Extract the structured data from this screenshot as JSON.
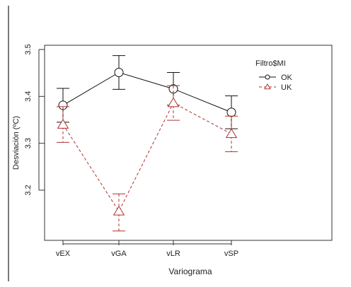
{
  "chart_data": {
    "type": "line",
    "title": "",
    "xlabel": "Variograma",
    "ylabel": "Desviación (ºC)",
    "categories": [
      "vEX",
      "vGA",
      "vLR",
      "vSP"
    ],
    "ylim": [
      3.1,
      3.5
    ],
    "yticks": [
      3.2,
      3.3,
      3.4,
      3.5
    ],
    "grid": false,
    "legend": {
      "title": "Filtro$MI",
      "placement": "top-right",
      "entries": [
        "OK",
        "UK"
      ]
    },
    "series": [
      {
        "name": "OK",
        "color": "#111111",
        "line_style": "solid",
        "marker": "circle",
        "values": [
          3.381,
          3.451,
          3.416,
          3.366
        ],
        "error_low": [
          3.345,
          3.415,
          3.381,
          3.331
        ],
        "error_high": [
          3.417,
          3.487,
          3.451,
          3.401
        ]
      },
      {
        "name": "UK",
        "color": "#b0302e",
        "line_style": "dashed",
        "marker": "triangle",
        "values": [
          3.34,
          3.155,
          3.386,
          3.32
        ],
        "error_low": [
          3.302,
          3.113,
          3.349,
          3.282
        ],
        "error_high": [
          3.378,
          3.192,
          3.423,
          3.358
        ]
      }
    ]
  }
}
